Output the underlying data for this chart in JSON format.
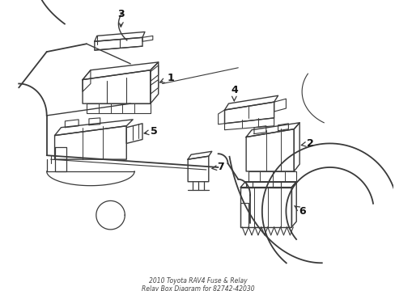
{
  "title": "2010 Toyota RAV4 Fuse & Relay\nRelay Box Diagram for 82742-42030",
  "bg_color": "#ffffff",
  "line_color": "#3a3a3a",
  "label_color": "#111111",
  "figsize": [
    4.89,
    3.6
  ],
  "dpi": 100
}
